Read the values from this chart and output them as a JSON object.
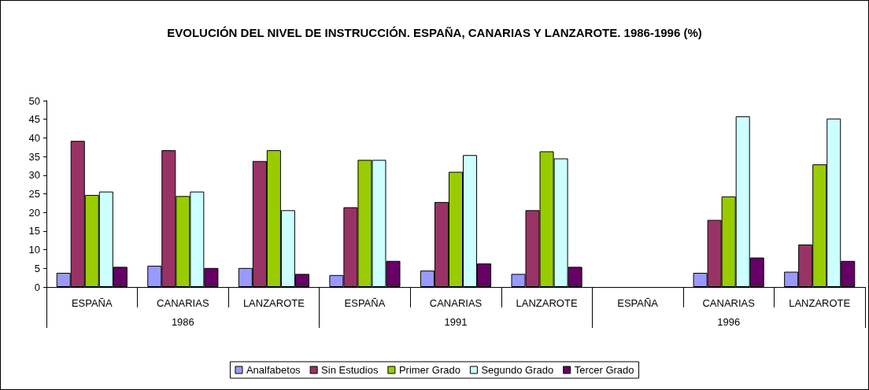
{
  "chart_data": {
    "type": "bar",
    "title": "EVOLUCIÓN DEL NIVEL DE INSTRUCCIÓN. ESPAÑA, CANARIAS Y LANZAROTE. 1986-1996 (%)",
    "categories": [
      "ESPAÑA",
      "CANARIAS",
      "LANZAROTE",
      "ESPAÑA",
      "CANARIAS",
      "LANZAROTE",
      "ESPAÑA",
      "CANARIAS",
      "LANZAROTE"
    ],
    "annotations": [
      "1986",
      "1991",
      "1996"
    ],
    "series": [
      {
        "name": "Analfabetos",
        "color": "#9999ff",
        "values": [
          3.8,
          5.7,
          5.1,
          3.2,
          4.4,
          3.5,
          null,
          3.8,
          4.1
        ]
      },
      {
        "name": "Sin Estudios",
        "color": "#993366",
        "values": [
          39.2,
          36.7,
          33.8,
          21.4,
          22.8,
          20.6,
          null,
          18.0,
          11.4
        ]
      },
      {
        "name": "Primer Grado",
        "color": "#99cc00",
        "values": [
          24.7,
          24.4,
          36.7,
          34.1,
          30.9,
          36.4,
          null,
          24.3,
          32.9
        ]
      },
      {
        "name": "Segundo Grado",
        "color": "#ccffff",
        "values": [
          25.6,
          25.6,
          20.6,
          34.1,
          35.4,
          34.5,
          null,
          45.8,
          45.2
        ]
      },
      {
        "name": "Tercer Grado",
        "color": "#660066",
        "values": [
          5.4,
          5.1,
          3.5,
          7.0,
          6.3,
          5.4,
          null,
          7.9,
          7.0
        ]
      }
    ],
    "ylim": [
      0,
      50
    ],
    "yticks": [
      0,
      5,
      10,
      15,
      20,
      25,
      30,
      35,
      40,
      45,
      50
    ],
    "grid": false,
    "legend": "bottom"
  }
}
